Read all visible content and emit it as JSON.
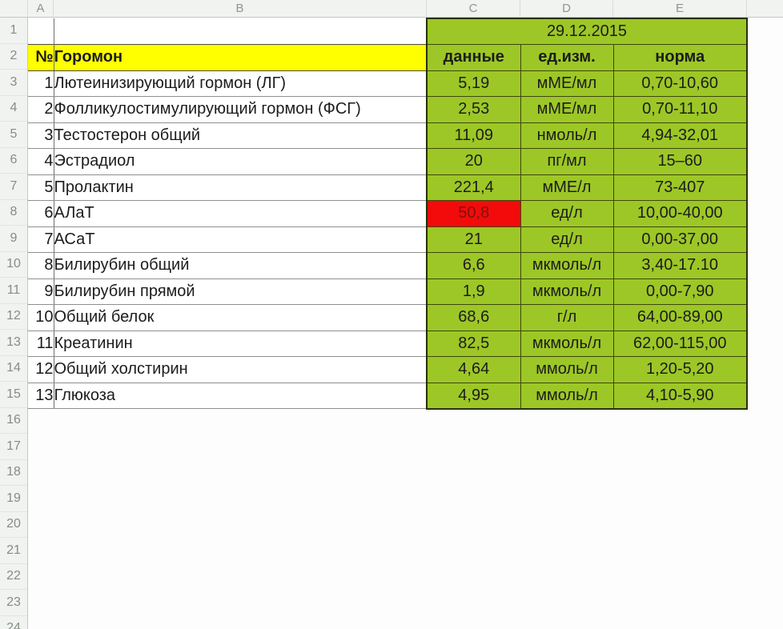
{
  "column_headers": [
    "A",
    "B",
    "C",
    "D",
    "E"
  ],
  "row_numbers": [
    "1",
    "2",
    "3",
    "4",
    "5",
    "6",
    "7",
    "8",
    "9",
    "10",
    "11",
    "12",
    "13",
    "14",
    "15",
    "16",
    "17",
    "18",
    "19",
    "20",
    "21",
    "22",
    "23",
    "24"
  ],
  "date_header": "29.12.2015",
  "table": {
    "headers": {
      "num": "№",
      "hormone": "Горомон",
      "data": "данные",
      "unit": "ед.изм.",
      "norm": "норма"
    },
    "rows": [
      {
        "num": "1",
        "name": "Лютеинизирующий гормон (ЛГ)",
        "value": "5,19",
        "unit": "мМЕ/мл",
        "norm": "0,70-10,60",
        "alert": false
      },
      {
        "num": "2",
        "name": "Фолликулостимулирующий гормон (ФСГ)",
        "value": "2,53",
        "unit": "мМЕ/мл",
        "norm": "0,70-11,10",
        "alert": false
      },
      {
        "num": "3",
        "name": "Тестостерон общий",
        "value": "11,09",
        "unit": "нмоль/л",
        "norm": "4,94-32,01",
        "alert": false
      },
      {
        "num": "4",
        "name": "Эстрадиол",
        "value": "20",
        "unit": "пг/мл",
        "norm": "15–60",
        "alert": false
      },
      {
        "num": "5",
        "name": "Пролактин",
        "value": "221,4",
        "unit": "мМЕ/л",
        "norm": "73-407",
        "alert": false
      },
      {
        "num": "6",
        "name": "АЛаТ",
        "value": "50,8",
        "unit": "ед/л",
        "norm": "10,00-40,00",
        "alert": true
      },
      {
        "num": "7",
        "name": "АСаТ",
        "value": "21",
        "unit": "ед/л",
        "norm": "0,00-37,00",
        "alert": false
      },
      {
        "num": "8",
        "name": "Билирубин общий",
        "value": "6,6",
        "unit": "мкмоль/л",
        "norm": "3,40-17.10",
        "alert": false
      },
      {
        "num": "9",
        "name": "Билирубин прямой",
        "value": "1,9",
        "unit": "мкмоль/л",
        "norm": "0,00-7,90",
        "alert": false
      },
      {
        "num": "10",
        "name": "Общий белок",
        "value": "68,6",
        "unit": "г/л",
        "norm": "64,00-89,00",
        "alert": false
      },
      {
        "num": "11",
        "name": "Креатинин",
        "value": "82,5",
        "unit": "мкмоль/л",
        "norm": "62,00-115,00",
        "alert": false
      },
      {
        "num": "12",
        "name": "Общий холстирин",
        "value": "4,64",
        "unit": "ммоль/л",
        "norm": "1,20-5,20",
        "alert": false
      },
      {
        "num": "13",
        "name": "Глюкоза",
        "value": "4,95",
        "unit": "ммоль/л",
        "norm": "4,10-5,90",
        "alert": false
      }
    ]
  },
  "colors": {
    "header_green": "#9dc726",
    "highlight_yellow": "#ffff00",
    "alert_red": "#f30b0b",
    "alert_text": "#7e120c"
  }
}
